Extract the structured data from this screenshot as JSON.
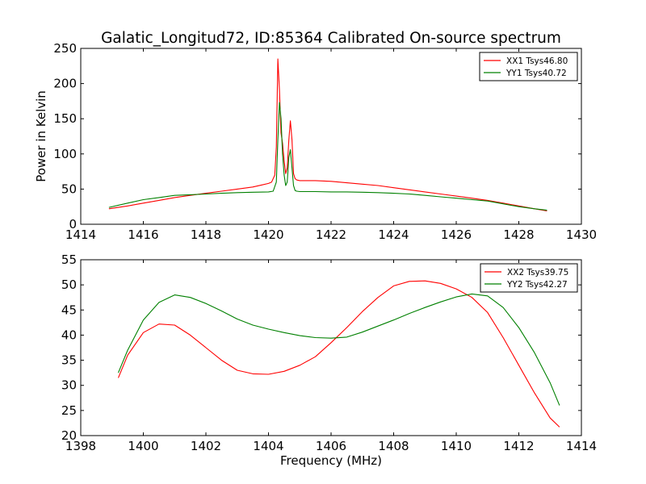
{
  "chart_data": [
    {
      "type": "line",
      "title": "Galatic_Longitud72, ID:85364 Calibrated On-source spectrum",
      "xlabel": "",
      "ylabel": "Power in Kelvin",
      "xlim": [
        1414,
        1430
      ],
      "ylim": [
        0,
        250
      ],
      "xticks": [
        1414,
        1416,
        1418,
        1420,
        1422,
        1424,
        1426,
        1428,
        1430
      ],
      "yticks": [
        0,
        50,
        100,
        150,
        200,
        250
      ],
      "grid": false,
      "legend_position": "top-right",
      "series": [
        {
          "name": "XX1 Tsys46.80",
          "color": "#ff0000",
          "x": [
            1414.9,
            1415.5,
            1416.0,
            1416.5,
            1417.0,
            1417.5,
            1418.0,
            1418.5,
            1419.0,
            1419.5,
            1419.8,
            1420.0,
            1420.1,
            1420.2,
            1420.25,
            1420.3,
            1420.35,
            1420.4,
            1420.45,
            1420.5,
            1420.55,
            1420.6,
            1420.65,
            1420.7,
            1420.75,
            1420.8,
            1420.85,
            1420.9,
            1421.0,
            1421.5,
            1422.0,
            1422.5,
            1423.0,
            1423.5,
            1424.0,
            1424.5,
            1425.0,
            1425.5,
            1426.0,
            1426.5,
            1427.0,
            1427.5,
            1428.0,
            1428.5,
            1428.9
          ],
          "y": [
            22,
            26,
            30,
            34,
            38,
            41,
            44,
            47,
            50,
            53,
            56,
            58,
            60,
            70,
            110,
            235,
            190,
            130,
            115,
            90,
            72,
            80,
            120,
            147,
            120,
            72,
            65,
            63,
            62,
            62,
            61,
            59,
            57,
            55,
            52,
            49,
            46,
            43,
            40,
            37,
            34,
            30,
            26,
            22,
            19
          ]
        },
        {
          "name": "YY1 Tsys40.72",
          "color": "#008000",
          "x": [
            1414.9,
            1415.5,
            1416.0,
            1416.5,
            1417.0,
            1417.5,
            1418.0,
            1418.5,
            1419.0,
            1419.5,
            1420.0,
            1420.15,
            1420.25,
            1420.3,
            1420.35,
            1420.4,
            1420.45,
            1420.5,
            1420.55,
            1420.6,
            1420.65,
            1420.7,
            1420.75,
            1420.8,
            1420.85,
            1420.9,
            1421.0,
            1421.5,
            1422.0,
            1422.5,
            1423.0,
            1423.5,
            1424.0,
            1424.5,
            1425.0,
            1425.5,
            1426.0,
            1426.5,
            1427.0,
            1427.5,
            1428.0,
            1428.5,
            1428.9
          ],
          "y": [
            24,
            30,
            35,
            38,
            41,
            42,
            43,
            44,
            45,
            45.5,
            46,
            47,
            60,
            120,
            173,
            150,
            100,
            70,
            55,
            60,
            95,
            106,
            80,
            55,
            48,
            47,
            46.5,
            46.5,
            46,
            46,
            45.5,
            45,
            44,
            43,
            41,
            39,
            37,
            35,
            33,
            29,
            25,
            22,
            20
          ]
        }
      ]
    },
    {
      "type": "line",
      "title": "",
      "xlabel": "Frequency (MHz)",
      "ylabel": "",
      "xlim": [
        1398,
        1414
      ],
      "ylim": [
        20,
        55
      ],
      "xticks": [
        1398,
        1400,
        1402,
        1404,
        1406,
        1408,
        1410,
        1412,
        1414
      ],
      "yticks": [
        20,
        25,
        30,
        35,
        40,
        45,
        50,
        55
      ],
      "grid": false,
      "legend_position": "top-right",
      "series": [
        {
          "name": "XX2 Tsys39.75",
          "color": "#ff0000",
          "x": [
            1399.2,
            1399.5,
            1400.0,
            1400.5,
            1401.0,
            1401.5,
            1402.0,
            1402.5,
            1403.0,
            1403.5,
            1404.0,
            1404.5,
            1405.0,
            1405.5,
            1406.0,
            1406.5,
            1407.0,
            1407.5,
            1408.0,
            1408.5,
            1409.0,
            1409.5,
            1410.0,
            1410.5,
            1411.0,
            1411.5,
            1412.0,
            1412.5,
            1413.0,
            1413.3
          ],
          "y": [
            31.5,
            36,
            40.5,
            42.2,
            42,
            40,
            37.5,
            35,
            33,
            32.3,
            32.2,
            32.8,
            34,
            35.7,
            38.5,
            41.5,
            44.7,
            47.5,
            49.8,
            50.7,
            50.8,
            50.3,
            49.2,
            47.5,
            44.5,
            39.5,
            34,
            28.5,
            23.5,
            21.7
          ]
        },
        {
          "name": "YY2 Tsys42.27",
          "color": "#008000",
          "x": [
            1399.2,
            1399.5,
            1400.0,
            1400.5,
            1401.0,
            1401.5,
            1402.0,
            1402.5,
            1403.0,
            1403.5,
            1404.0,
            1404.5,
            1405.0,
            1405.5,
            1406.0,
            1406.5,
            1407.0,
            1407.5,
            1408.0,
            1408.5,
            1409.0,
            1409.5,
            1410.0,
            1410.5,
            1411.0,
            1411.5,
            1412.0,
            1412.5,
            1413.0,
            1413.3
          ],
          "y": [
            32.5,
            37,
            43,
            46.5,
            48,
            47.5,
            46.3,
            44.8,
            43.2,
            42,
            41.2,
            40.5,
            39.9,
            39.5,
            39.4,
            39.6,
            40.6,
            41.8,
            43,
            44.3,
            45.5,
            46.6,
            47.6,
            48.2,
            47.8,
            45.5,
            41.5,
            36.5,
            30.5,
            26
          ]
        }
      ]
    }
  ]
}
